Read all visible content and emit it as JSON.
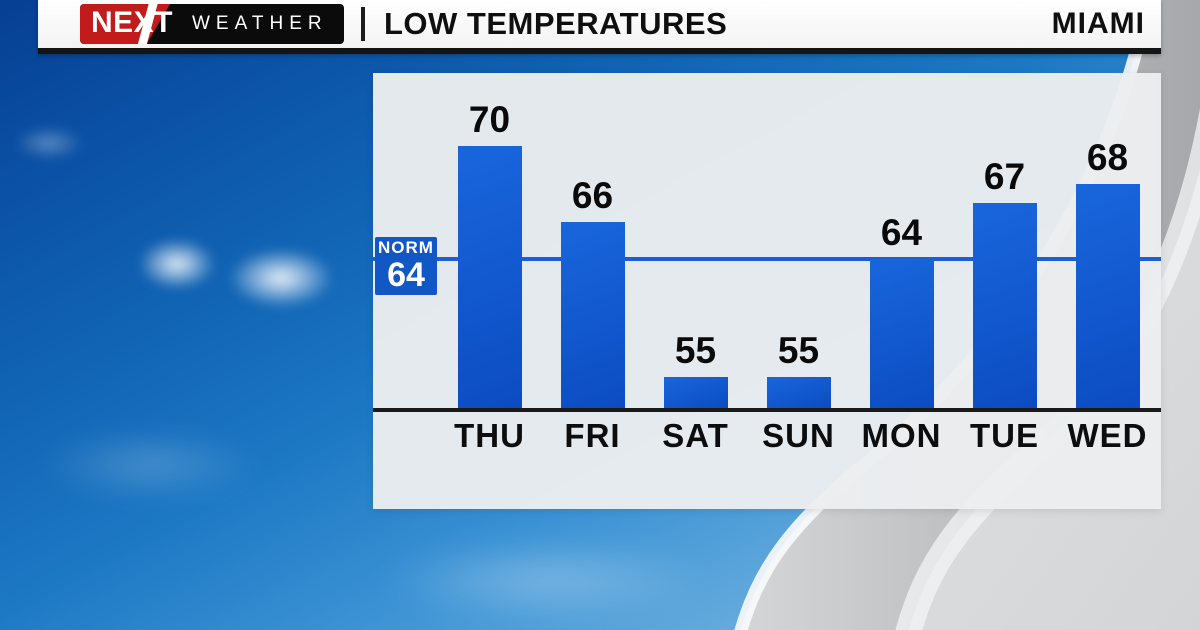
{
  "header": {
    "brand_next": "NEXT",
    "brand_weather": "WEATHER",
    "divider": "|",
    "title": "LOW TEMPERATURES",
    "location": "MIAMI"
  },
  "chart_data": {
    "type": "bar",
    "title": "LOW TEMPERATURES",
    "subtitle": "MIAMI",
    "categories": [
      "THU",
      "FRI",
      "SAT",
      "SUN",
      "MON",
      "TUE",
      "WED"
    ],
    "values": [
      70,
      66,
      55,
      55,
      64,
      67,
      68
    ],
    "norm_label": "NORM",
    "norm_value": 64,
    "value_labels_shown": true,
    "grid": false,
    "legend": false,
    "axis": "single black baseline, no y-axis ticks; reference line at normal value 64"
  },
  "colors": {
    "bar_light": "#1966dc",
    "bar_dark": "#0c4cc2",
    "norm_box": "#1158c6",
    "norm_line": "#1c5fd2",
    "axis": "#1a1a1a",
    "logo_red": "#c11b1b",
    "logo_black": "#0b0b0b",
    "panel_bg": "#ebedf0",
    "sky_dark": "#063f93",
    "sky_light": "#8ec5ec"
  }
}
